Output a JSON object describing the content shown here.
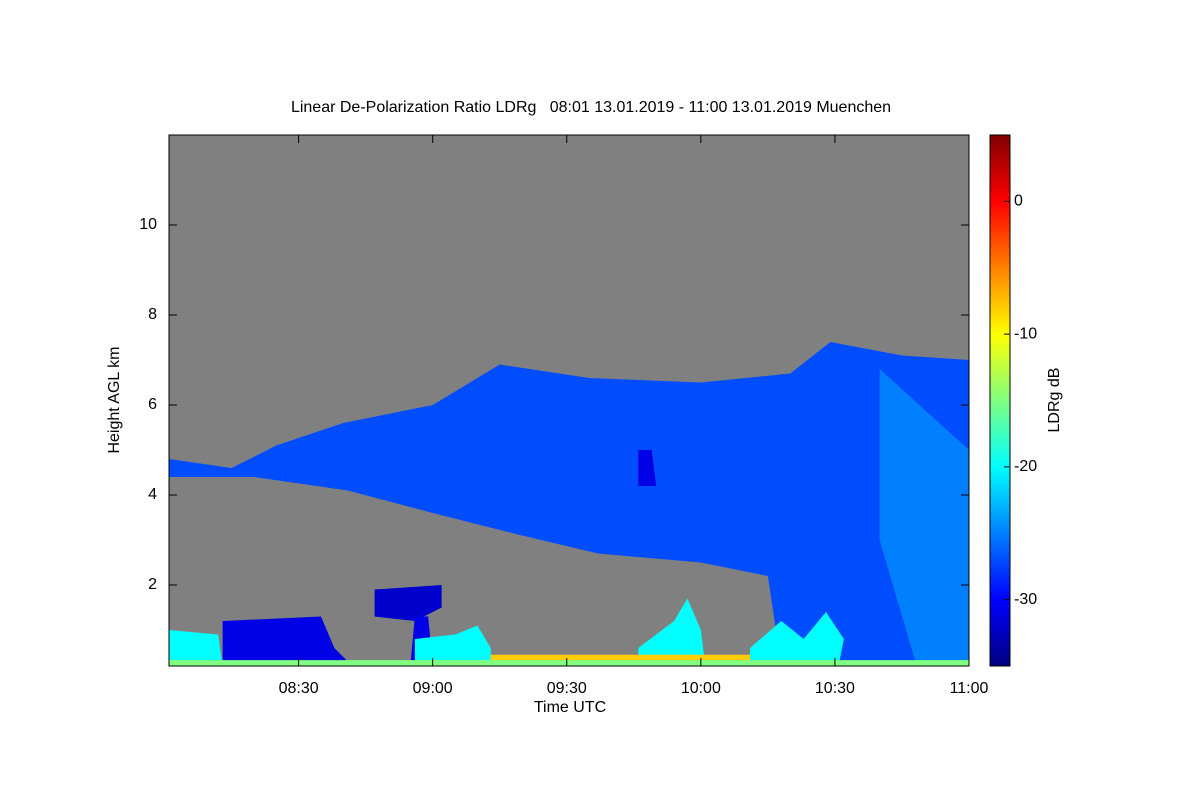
{
  "chart_data": {
    "type": "heatmap",
    "title": "Linear De-Polarization Ratio LDRg   08:01 13.01.2019 - 11:00 13.01.2019 Muenchen",
    "xlabel": "Time UTC",
    "ylabel": "Height AGL km",
    "colorbar_label": "LDRg dB",
    "xlim": [
      481,
      660
    ],
    "xticks": [
      {
        "value": 510,
        "label": "08:30"
      },
      {
        "value": 540,
        "label": "09:00"
      },
      {
        "value": 570,
        "label": "09:30"
      },
      {
        "value": 600,
        "label": "10:00"
      },
      {
        "value": 630,
        "label": "10:30"
      },
      {
        "value": 660,
        "label": "11:00"
      }
    ],
    "ylim": [
      0.2,
      12
    ],
    "yticks": [
      2,
      4,
      6,
      8,
      10
    ],
    "clim": [
      -35,
      5
    ],
    "cticks": [
      0,
      -10,
      -20,
      -30
    ],
    "colormap": "jet",
    "background": "#808080",
    "regions": [
      {
        "value": -27,
        "points": [
          [
            481,
            4.8
          ],
          [
            495,
            4.6
          ],
          [
            505,
            5.1
          ],
          [
            520,
            5.6
          ],
          [
            540,
            6.0
          ],
          [
            555,
            6.9
          ],
          [
            575,
            6.6
          ],
          [
            600,
            6.5
          ],
          [
            620,
            6.7
          ],
          [
            629,
            7.4
          ],
          [
            645,
            7.1
          ],
          [
            660,
            7.0
          ],
          [
            660,
            0.2
          ],
          [
            618,
            0.2
          ],
          [
            615,
            2.2
          ],
          [
            600,
            2.5
          ],
          [
            577,
            2.7
          ],
          [
            560,
            3.1
          ],
          [
            540,
            3.6
          ],
          [
            521,
            4.1
          ],
          [
            500,
            4.4
          ],
          [
            481,
            4.4
          ]
        ]
      },
      {
        "value": -25,
        "points": [
          [
            640,
            6.8
          ],
          [
            660,
            5.0
          ],
          [
            660,
            0.3
          ],
          [
            648,
            0.3
          ],
          [
            640,
            3.0
          ]
        ]
      },
      {
        "value": -31,
        "points": [
          [
            586,
            5.0
          ],
          [
            589,
            5.0
          ],
          [
            590,
            4.2
          ],
          [
            586,
            4.2
          ]
        ]
      },
      {
        "value": -31,
        "points": [
          [
            493,
            1.2
          ],
          [
            515,
            1.3
          ],
          [
            518,
            0.6
          ],
          [
            522,
            0.2
          ],
          [
            493,
            0.2
          ]
        ]
      },
      {
        "value": -32,
        "points": [
          [
            527,
            1.9
          ],
          [
            542,
            2.0
          ],
          [
            542,
            1.5
          ],
          [
            536,
            1.2
          ],
          [
            527,
            1.3
          ]
        ]
      },
      {
        "value": -31,
        "points": [
          [
            536,
            1.3
          ],
          [
            539,
            1.3
          ],
          [
            540,
            0.2
          ],
          [
            535,
            0.2
          ]
        ]
      },
      {
        "value": -20,
        "points": [
          [
            481,
            1.0
          ],
          [
            492,
            0.9
          ],
          [
            493,
            0.2
          ],
          [
            481,
            0.2
          ]
        ]
      },
      {
        "value": -20,
        "points": [
          [
            536,
            0.8
          ],
          [
            545,
            0.9
          ],
          [
            550,
            1.1
          ],
          [
            553,
            0.6
          ],
          [
            553,
            0.2
          ],
          [
            536,
            0.2
          ]
        ]
      },
      {
        "value": -20,
        "points": [
          [
            586,
            0.6
          ],
          [
            594,
            1.2
          ],
          [
            597,
            1.7
          ],
          [
            600,
            1.0
          ],
          [
            601,
            0.2
          ],
          [
            586,
            0.2
          ]
        ]
      },
      {
        "value": -20,
        "points": [
          [
            611,
            0.6
          ],
          [
            618,
            1.2
          ],
          [
            623,
            0.8
          ],
          [
            628,
            1.4
          ],
          [
            632,
            0.8
          ],
          [
            631,
            0.3
          ],
          [
            611,
            0.3
          ]
        ]
      },
      {
        "value": -8,
        "points": [
          [
            553,
            0.45
          ],
          [
            611,
            0.45
          ],
          [
            611,
            0.3
          ],
          [
            553,
            0.3
          ]
        ]
      },
      {
        "value": -15,
        "points": [
          [
            481,
            0.33
          ],
          [
            660,
            0.33
          ],
          [
            660,
            0.2
          ],
          [
            481,
            0.2
          ]
        ]
      }
    ]
  }
}
